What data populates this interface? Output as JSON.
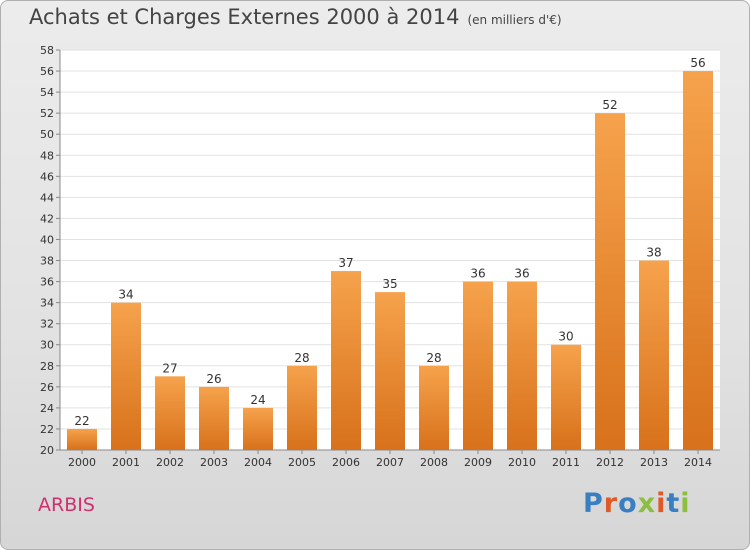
{
  "header": {
    "title": "Achats et Charges Externes 2000 à 2014",
    "subtitle": "(en milliers d'€)"
  },
  "commune": "ARBIS",
  "logo": {
    "text": "Proxiti",
    "colors": [
      "#3a7fc1",
      "#e05a27",
      "#3a7fc1",
      "#8cbf3f",
      "#e05a27",
      "#3a7fc1",
      "#8cbf3f"
    ]
  },
  "chart_data": {
    "type": "bar",
    "categories": [
      "2000",
      "2001",
      "2002",
      "2003",
      "2004",
      "2005",
      "2006",
      "2007",
      "2008",
      "2009",
      "2010",
      "2011",
      "2012",
      "2013",
      "2014"
    ],
    "values": [
      22,
      34,
      27,
      26,
      24,
      28,
      37,
      35,
      28,
      36,
      36,
      30,
      52,
      38,
      56
    ],
    "ylim": [
      20,
      58
    ],
    "yticks": [
      20,
      22,
      24,
      26,
      28,
      30,
      32,
      34,
      36,
      38,
      40,
      42,
      44,
      46,
      48,
      50,
      52,
      54,
      56,
      58
    ],
    "grid": true,
    "data_labels": true,
    "bar_color": "#e8872e"
  }
}
